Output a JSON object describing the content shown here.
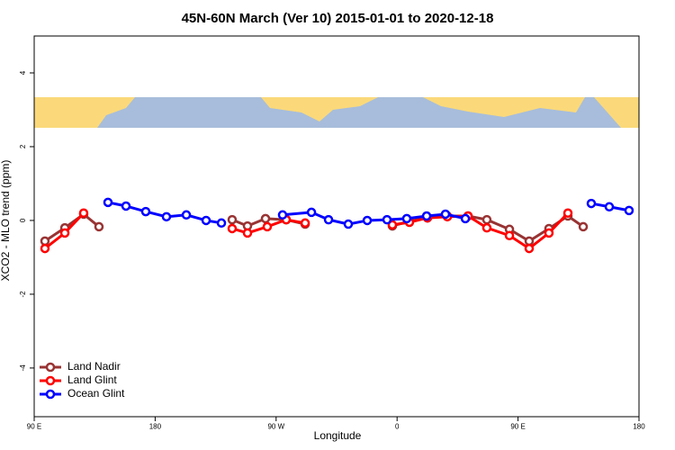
{
  "chart_data": {
    "type": "line",
    "title": "45N-60N March (Ver 10)   2015-01-01 to 2020-12-18",
    "x_label": "Longitude",
    "y_label": "XCO2 - MLO trend (ppm)",
    "xlim": [
      90,
      540
    ],
    "xticks": [
      {
        "value": 90,
        "label": "90 E"
      },
      180,
      {
        "value": 270,
        "label": "90 W"
      },
      {
        "value": 360,
        "label": "0"
      },
      {
        "value": 450,
        "label": "90 E"
      },
      {
        "value": 540,
        "label": "180"
      }
    ],
    "ylim": [
      -5.32,
      5.0
    ],
    "yticks": [
      -4,
      -2,
      0,
      2,
      4
    ],
    "legend": "bottom-left",
    "series": [
      {
        "name": "Land Nadir",
        "color": "#993333",
        "x": [
          98.0,
          112.8,
          126.8,
          138.2,
          null,
          237.3,
          248.7,
          262.1,
          277.5,
          291.6,
          null,
          356.5,
          369.2,
          382.6,
          397.4,
          412.8,
          426.8,
          443.6,
          458.3,
          473.0,
          487.1,
          498.5
        ],
        "values": [
          -0.56,
          -0.2,
          0.17,
          -0.17,
          null,
          0.02,
          -0.15,
          0.05,
          0.02,
          -0.1,
          null,
          -0.15,
          -0.02,
          0.07,
          0.12,
          0.12,
          0.02,
          -0.24,
          -0.56,
          -0.22,
          0.12,
          -0.17
        ]
      },
      {
        "name": "Land Glint",
        "color": "#ff0000",
        "x": [
          98.0,
          112.8,
          126.8,
          null,
          237.3,
          248.7,
          263.4,
          277.5,
          291.6,
          null,
          356.5,
          369.2,
          382.6,
          397.4,
          412.8,
          426.8,
          443.6,
          458.3,
          473.0,
          487.1
        ],
        "values": [
          -0.76,
          -0.34,
          0.2,
          null,
          -0.22,
          -0.34,
          -0.17,
          0.02,
          -0.07,
          null,
          -0.12,
          -0.05,
          0.07,
          0.1,
          0.12,
          -0.2,
          -0.41,
          -0.76,
          -0.34,
          0.2
        ]
      },
      {
        "name": "Ocean Glint",
        "color": "#0000ff",
        "x": [
          144.9,
          158.3,
          173.0,
          188.4,
          203.2,
          217.9,
          229.3,
          null,
          274.8,
          296.3,
          309.0,
          323.7,
          337.8,
          352.5,
          367.2,
          382.0,
          396.0,
          410.8,
          null,
          504.5,
          517.9,
          532.6
        ],
        "values": [
          0.49,
          0.39,
          0.24,
          0.1,
          0.15,
          0,
          -0.07,
          null,
          0.15,
          0.22,
          0.02,
          -0.1,
          0,
          0.02,
          0.05,
          0.12,
          0.17,
          0.05,
          null,
          0.46,
          0.37,
          0.27
        ]
      }
    ]
  }
}
